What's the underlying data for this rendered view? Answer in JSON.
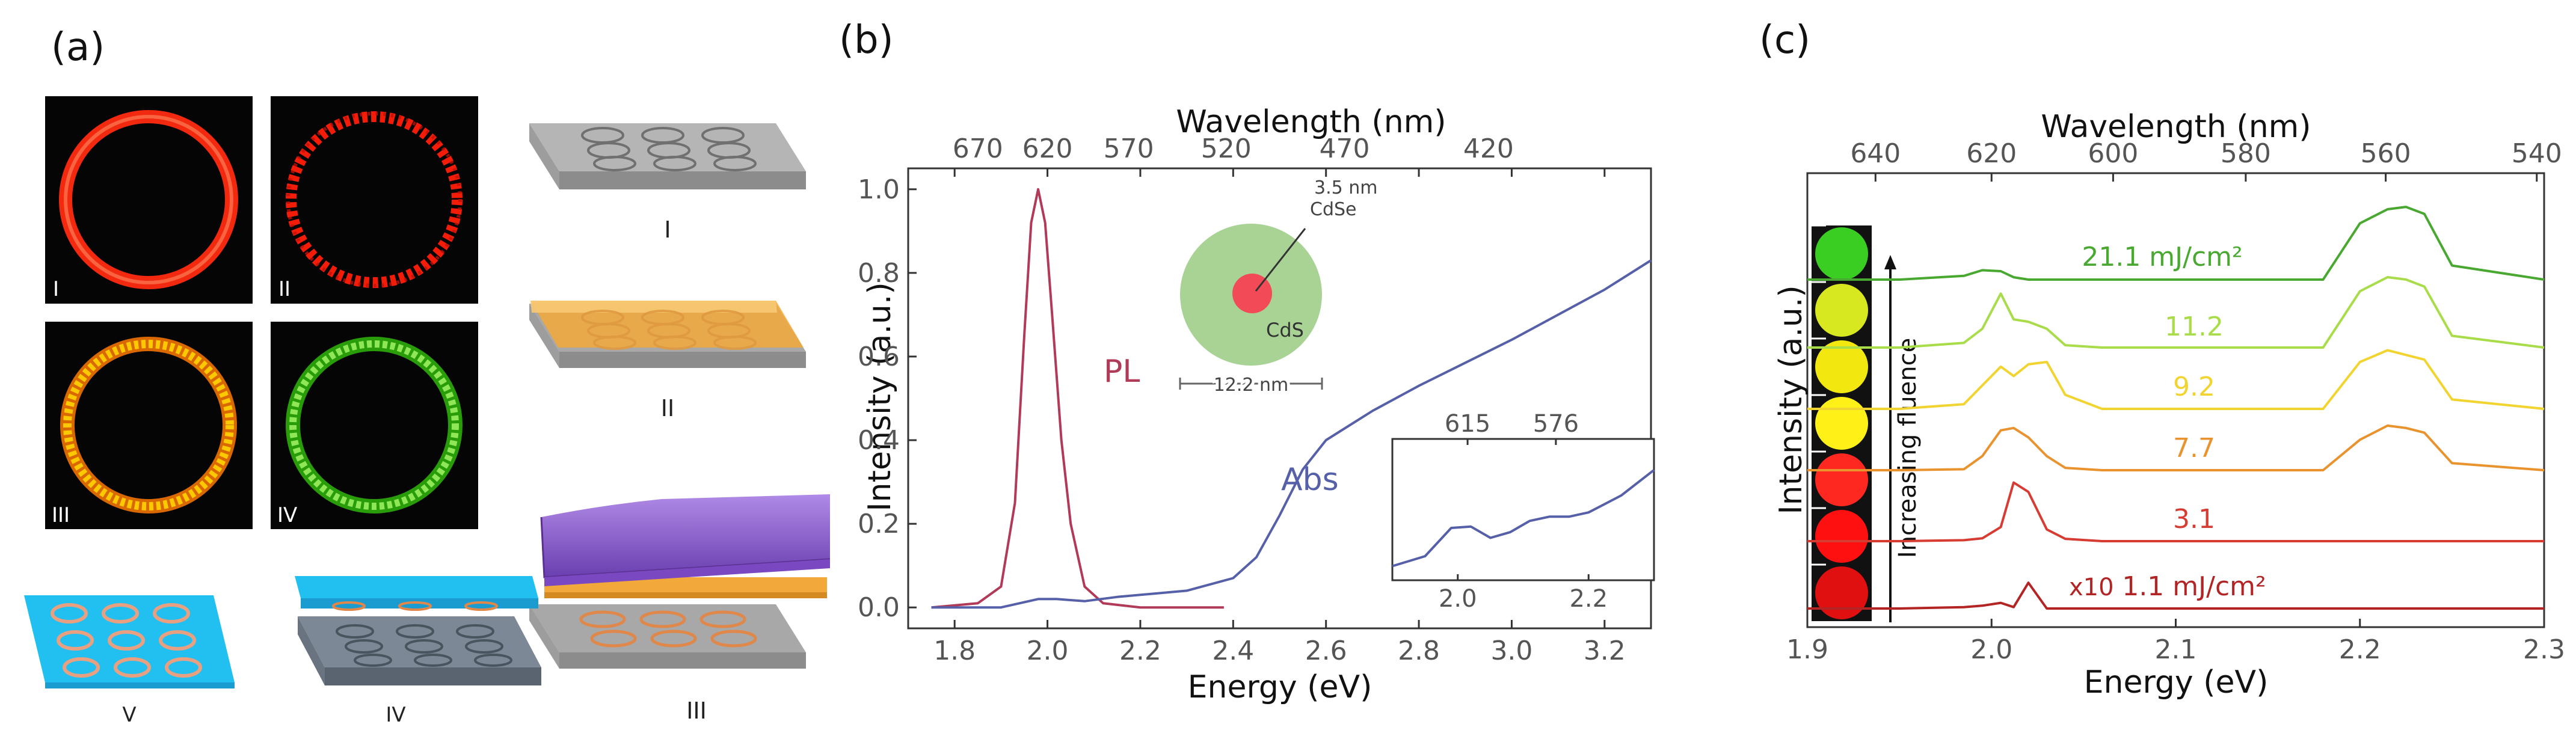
{
  "panel_labels": {
    "a": "(a)",
    "b": "(b)",
    "c": "(c)"
  },
  "panel_a": {
    "micrographs": [
      {
        "label": "I",
        "color": "#ff2a10"
      },
      {
        "label": "II",
        "color": "#ff1e0a"
      },
      {
        "label": "III",
        "color": "#ffb000"
      },
      {
        "label": "IV",
        "color": "#44e010"
      }
    ],
    "stack_steps": [
      {
        "label": "I"
      },
      {
        "label": "II"
      },
      {
        "label": "III"
      },
      {
        "label": "IV"
      },
      {
        "label": "V"
      }
    ],
    "colors": {
      "substrate": "#9a9a9a",
      "orange_layer": "#f2a93a",
      "purple_layer": "#8a55c8",
      "cyan_layer": "#22c0f0",
      "ring_orange": "#e0874a"
    }
  },
  "chart_data": [
    {
      "type": "line",
      "panel": "b",
      "xlabel": "Energy (eV)",
      "ylabel": "Intensity (a.u.)",
      "top_axis_label": "Wavelength (nm)",
      "xlim": [
        1.7,
        3.3
      ],
      "ylim": [
        -0.05,
        1.05
      ],
      "xticks": [
        1.8,
        2.0,
        2.2,
        2.4,
        2.6,
        2.8,
        3.0,
        3.2
      ],
      "xtick_labels": [
        "1.8",
        "2.0",
        "2.2",
        "2.4",
        "2.6",
        "2.8",
        "3.0",
        "3.2"
      ],
      "yticks": [
        0.0,
        0.2,
        0.4,
        0.6,
        0.8,
        1.0
      ],
      "ytick_labels": [
        "0.0",
        "0.2",
        "0.4",
        "0.6",
        "0.8",
        "1.0"
      ],
      "top_ticks": [
        {
          "label": "670",
          "energy": 1.85
        },
        {
          "label": "620",
          "energy": 2.0
        },
        {
          "label": "570",
          "energy": 2.175
        },
        {
          "label": "520",
          "energy": 2.385
        },
        {
          "label": "470",
          "energy": 2.64
        },
        {
          "label": "420",
          "energy": 2.95
        }
      ],
      "series": [
        {
          "name": "PL",
          "label": "PL",
          "color": "#b03a58",
          "x": [
            1.75,
            1.85,
            1.9,
            1.93,
            1.95,
            1.965,
            1.98,
            1.995,
            2.01,
            2.03,
            2.05,
            2.08,
            2.12,
            2.2,
            2.38
          ],
          "y": [
            0.0,
            0.01,
            0.05,
            0.25,
            0.65,
            0.92,
            1.0,
            0.92,
            0.7,
            0.4,
            0.2,
            0.05,
            0.01,
            0.0,
            0.0
          ]
        },
        {
          "name": "Abs",
          "label": "Abs",
          "color": "#5560a8",
          "x": [
            1.75,
            1.9,
            1.98,
            2.02,
            2.08,
            2.15,
            2.3,
            2.4,
            2.45,
            2.5,
            2.55,
            2.6,
            2.7,
            2.8,
            3.0,
            3.2,
            3.3
          ],
          "y": [
            0.0,
            0.0,
            0.02,
            0.02,
            0.015,
            0.025,
            0.04,
            0.07,
            0.12,
            0.22,
            0.33,
            0.4,
            0.47,
            0.53,
            0.64,
            0.76,
            0.83
          ]
        }
      ],
      "inset_schematic": {
        "core_label": "3.5 nm\nCdSe",
        "core_label_lines": [
          "3.5 nm",
          "CdSe"
        ],
        "shell_label": "CdS",
        "scale_label": "12.2 nm",
        "core_color": "#f24b57",
        "shell_color": "#9fce8a"
      },
      "inset_plot": {
        "xlim": [
          1.9,
          2.3
        ],
        "xticks": [
          2.0,
          2.2
        ],
        "xtick_labels": [
          "2.0",
          "2.2"
        ],
        "top_ticks": [
          {
            "label": "615",
            "energy": 2.015
          },
          {
            "label": "576",
            "energy": 2.15
          }
        ],
        "x": [
          1.9,
          1.95,
          1.99,
          2.02,
          2.05,
          2.08,
          2.11,
          2.14,
          2.17,
          2.2,
          2.25,
          2.3
        ],
        "y": [
          0.1,
          0.17,
          0.37,
          0.38,
          0.3,
          0.34,
          0.42,
          0.45,
          0.45,
          0.48,
          0.6,
          0.78
        ]
      }
    },
    {
      "type": "line",
      "panel": "c",
      "xlabel": "Energy (eV)",
      "ylabel": "Intensity (a.u.)",
      "top_axis_label": "Wavelength (nm)",
      "xlim": [
        1.9,
        2.3
      ],
      "xticks": [
        1.9,
        2.0,
        2.1,
        2.2,
        2.3
      ],
      "xtick_labels": [
        "1.9",
        "2.0",
        "2.1",
        "2.2",
        "2.3"
      ],
      "top_ticks": [
        {
          "label": "640",
          "energy": 1.937
        },
        {
          "label": "620",
          "energy": 2.0
        },
        {
          "label": "600",
          "energy": 2.066
        },
        {
          "label": "580",
          "energy": 2.138
        },
        {
          "label": "560",
          "energy": 2.214
        },
        {
          "label": "540",
          "energy": 2.296
        }
      ],
      "fluence_arrow_label": "Increasing fluence",
      "spectrum_x": [
        1.9,
        1.95,
        1.985,
        1.995,
        2.005,
        2.012,
        2.02,
        2.03,
        2.04,
        2.06,
        2.1,
        2.18,
        2.2,
        2.215,
        2.225,
        2.235,
        2.25,
        2.3
      ],
      "series": [
        {
          "name": "1.1 mJ/cm²",
          "label": "1.1 mJ/cm²",
          "note": "x10",
          "color": "#b32424",
          "y": [
            0.0,
            0.0,
            0.03,
            0.06,
            0.12,
            0.03,
            0.55,
            0.0,
            0.0,
            0.0,
            0.0,
            0.0,
            0.0,
            0.0,
            0.0,
            0.0,
            0.0,
            0.0
          ]
        },
        {
          "name": "3.1",
          "label": "3.1",
          "color": "#d63c32",
          "y": [
            0.0,
            0.0,
            0.02,
            0.06,
            0.3,
            1.25,
            1.05,
            0.25,
            0.05,
            0.0,
            0.0,
            0.0,
            0.0,
            0.0,
            0.0,
            0.0,
            0.0,
            0.0
          ]
        },
        {
          "name": "7.7",
          "label": "7.7",
          "color": "#e8932e",
          "y": [
            0.0,
            0.0,
            0.02,
            0.3,
            0.85,
            0.9,
            0.7,
            0.3,
            0.05,
            0.0,
            0.0,
            0.0,
            0.65,
            0.95,
            0.9,
            0.8,
            0.15,
            0.0
          ]
        },
        {
          "name": "9.2",
          "label": "9.2",
          "color": "#f2d430",
          "y": [
            0.0,
            0.0,
            0.1,
            0.5,
            0.9,
            0.7,
            0.95,
            1.0,
            0.3,
            0.0,
            0.0,
            0.0,
            1.0,
            1.25,
            1.15,
            1.05,
            0.2,
            0.0
          ]
        },
        {
          "name": "11.2",
          "label": "11.2",
          "color": "#a8dc48",
          "y": [
            0.0,
            0.0,
            0.1,
            0.4,
            1.15,
            0.6,
            0.55,
            0.4,
            0.05,
            0.0,
            0.0,
            0.0,
            1.2,
            1.5,
            1.45,
            1.3,
            0.25,
            0.0
          ]
        },
        {
          "name": "21.1 mJ/cm²",
          "label": "21.1 mJ/cm²",
          "color": "#48a830",
          "y": [
            0.0,
            0.0,
            0.08,
            0.2,
            0.18,
            0.05,
            0.0,
            0.0,
            0.0,
            0.0,
            0.0,
            0.0,
            1.2,
            1.5,
            1.55,
            1.4,
            0.3,
            0.0
          ]
        }
      ],
      "swatches": [
        "#3acd22",
        "#d8e820",
        "#f2e810",
        "#fff018",
        "#ff2820",
        "#ff1010",
        "#e01010"
      ]
    }
  ]
}
